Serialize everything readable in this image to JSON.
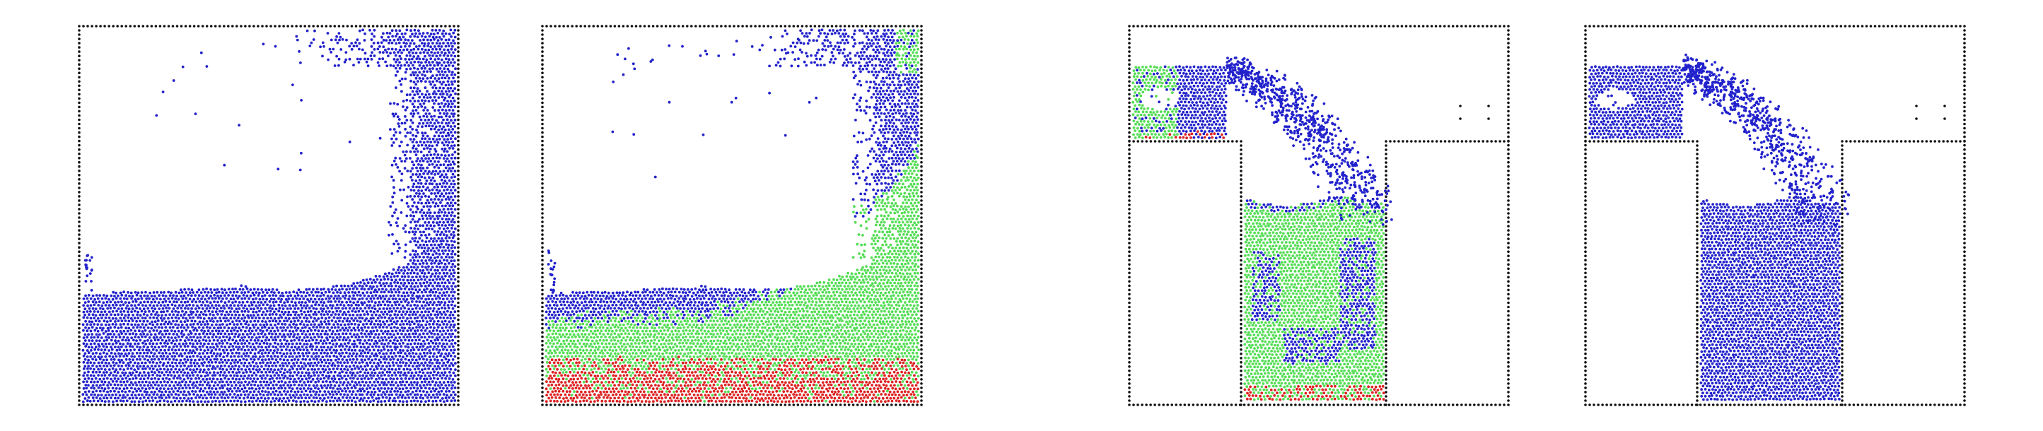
{
  "colors": {
    "background": "#ffffff",
    "wall_particles": "#111111",
    "fluid_blue": "#2222cc",
    "fluid_green": "#55dd55",
    "fluid_red": "#dd2222"
  },
  "panels": [
    {
      "scene": "dam-break-wave",
      "coloring": "single-phase",
      "fluid_colors": [
        "blue"
      ]
    },
    {
      "scene": "dam-break-wave",
      "coloring": "phase-labelled",
      "fluid_colors": [
        "blue",
        "green",
        "red"
      ]
    },
    {
      "scene": "flow-into-tank",
      "coloring": "phase-labelled",
      "fluid_colors": [
        "blue",
        "green",
        "red"
      ]
    },
    {
      "scene": "flow-into-tank",
      "coloring": "single-phase",
      "fluid_colors": [
        "blue"
      ]
    }
  ]
}
